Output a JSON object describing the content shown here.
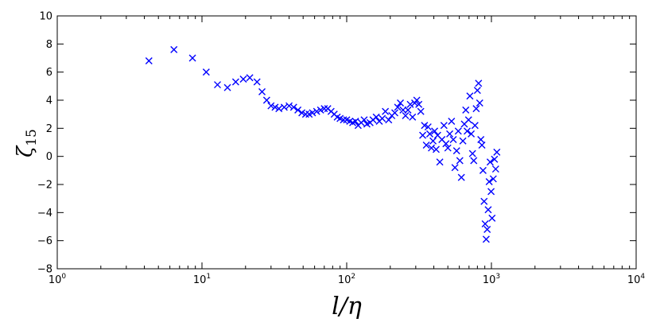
{
  "chart_data": {
    "type": "scatter",
    "title": "",
    "xlabel": "l/η",
    "ylabel": "ζ15",
    "x_scale": "log",
    "xlim": [
      1,
      10000
    ],
    "ylim": [
      -8,
      10
    ],
    "grid": false,
    "legend": "none",
    "marker": "x",
    "marker_color": "#0000ff",
    "x_ticks": [
      {
        "value": 1,
        "base": "10",
        "exp": "0"
      },
      {
        "value": 10,
        "base": "10",
        "exp": "1"
      },
      {
        "value": 100,
        "base": "10",
        "exp": "2"
      },
      {
        "value": 1000,
        "base": "10",
        "exp": "3"
      },
      {
        "value": 10000,
        "base": "10",
        "exp": "4"
      }
    ],
    "y_ticks": [
      {
        "value": -8,
        "label": "−8"
      },
      {
        "value": -6,
        "label": "−6"
      },
      {
        "value": -4,
        "label": "−4"
      },
      {
        "value": -2,
        "label": "−2"
      },
      {
        "value": 0,
        "label": "0"
      },
      {
        "value": 2,
        "label": "2"
      },
      {
        "value": 4,
        "label": "4"
      },
      {
        "value": 6,
        "label": "6"
      },
      {
        "value": 8,
        "label": "8"
      },
      {
        "value": 10,
        "label": "10"
      }
    ],
    "series": [
      {
        "x": [
          4.3,
          6.4,
          8.6,
          10.7,
          12.8,
          15.0,
          17.1,
          19.3,
          21.4,
          24,
          26,
          28,
          30,
          32,
          34,
          37,
          40,
          43,
          46,
          49,
          52,
          55,
          58,
          62,
          66,
          70,
          74,
          78,
          82,
          86,
          90,
          95,
          100,
          105,
          110,
          115,
          120,
          126,
          132,
          138,
          145,
          152,
          160,
          168,
          176,
          185,
          195,
          205,
          215,
          225,
          235,
          245,
          255,
          265,
          275,
          285,
          295,
          305,
          315,
          325,
          335,
          345,
          355,
          365,
          375,
          385,
          395,
          405,
          415,
          425,
          440,
          455,
          470,
          485,
          500,
          515,
          530,
          545,
          560,
          575,
          590,
          605,
          620,
          635,
          650,
          665,
          680,
          695,
          710,
          725,
          740,
          755,
          770,
          785,
          800,
          815,
          830,
          845,
          860,
          875,
          890,
          905,
          920,
          935,
          950,
          965,
          980,
          995,
          1010,
          1030,
          1050,
          1070,
          1090
        ],
        "y": [
          6.8,
          7.6,
          7.0,
          6.0,
          5.1,
          4.9,
          5.3,
          5.5,
          5.6,
          5.3,
          4.6,
          4.0,
          3.6,
          3.5,
          3.4,
          3.5,
          3.6,
          3.5,
          3.3,
          3.1,
          3.0,
          3.0,
          3.1,
          3.2,
          3.3,
          3.4,
          3.4,
          3.2,
          3.0,
          2.8,
          2.7,
          2.6,
          2.6,
          2.5,
          2.4,
          2.5,
          2.2,
          2.4,
          2.6,
          2.3,
          2.4,
          2.6,
          2.8,
          2.5,
          2.7,
          3.2,
          2.6,
          2.9,
          3.1,
          3.5,
          3.8,
          3.3,
          2.9,
          3.3,
          3.7,
          2.8,
          3.8,
          4.0,
          3.7,
          3.2,
          1.5,
          2.2,
          0.8,
          2.1,
          1.6,
          0.6,
          1.1,
          1.8,
          0.5,
          1.5,
          -0.4,
          1.2,
          2.2,
          0.9,
          0.6,
          1.6,
          2.5,
          1.2,
          -0.8,
          0.4,
          1.8,
          -0.3,
          -1.5,
          1.1,
          2.3,
          3.3,
          1.8,
          2.6,
          4.3,
          1.6,
          0.2,
          -0.3,
          2.2,
          3.4,
          4.7,
          5.2,
          3.8,
          1.2,
          0.8,
          -1.0,
          -3.2,
          -4.8,
          -5.9,
          -5.2,
          -3.8,
          -1.8,
          -0.4,
          -2.5,
          -4.4,
          -1.6,
          -0.2,
          -0.9,
          0.3
        ]
      }
    ]
  }
}
